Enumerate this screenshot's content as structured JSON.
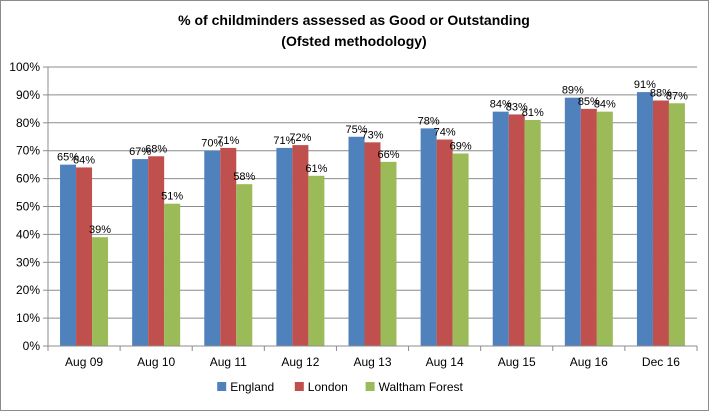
{
  "chart_data": {
    "type": "bar",
    "title_lines": [
      "% of childminders assessed as Good or Outstanding",
      "(Ofsted methodology)"
    ],
    "categories": [
      "Aug 09",
      "Aug 10",
      "Aug 11",
      "Aug 12",
      "Aug 13",
      "Aug 14",
      "Aug 15",
      "Aug 16",
      "Dec 16"
    ],
    "series": [
      {
        "name": "England",
        "color": "#4f81bd",
        "values": [
          65,
          67,
          70,
          71,
          75,
          78,
          84,
          89,
          91
        ]
      },
      {
        "name": "London",
        "color": "#c0504d",
        "values": [
          64,
          68,
          71,
          72,
          73,
          74,
          83,
          85,
          88
        ]
      },
      {
        "name": "Waltham Forest",
        "color": "#9bbb59",
        "values": [
          39,
          51,
          58,
          61,
          66,
          69,
          81,
          84,
          87
        ]
      }
    ],
    "value_suffix": "%",
    "ylim": [
      0,
      100
    ],
    "y_ticks": [
      "0%",
      "10%",
      "20%",
      "30%",
      "40%",
      "50%",
      "60%",
      "70%",
      "80%",
      "90%",
      "100%"
    ],
    "xlabel": "",
    "ylabel": "",
    "grid": true,
    "legend_position": "bottom"
  }
}
